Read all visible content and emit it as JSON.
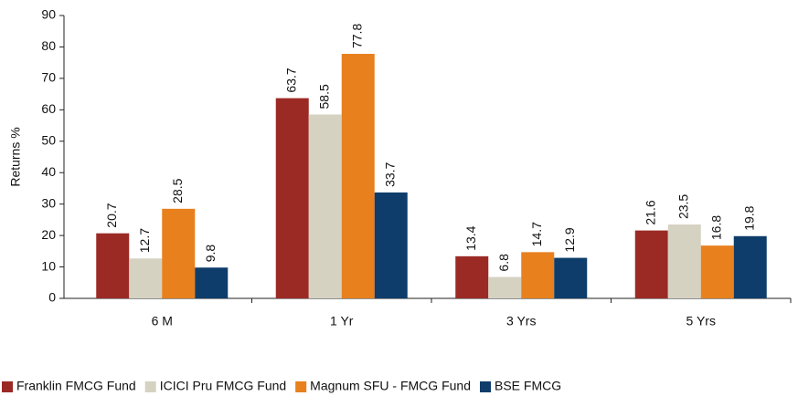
{
  "chart_data": {
    "type": "bar",
    "ylabel": "Returns %",
    "categories": [
      "6 M",
      "1 Yr",
      "3 Yrs",
      "5 Yrs"
    ],
    "series": [
      {
        "name": "Franklin FMCG Fund",
        "color": "#9b2a25",
        "values": [
          20.7,
          63.7,
          13.4,
          21.6
        ]
      },
      {
        "name": "ICICI Pru FMCG Fund",
        "color": "#d5d2c2",
        "values": [
          12.7,
          58.5,
          6.8,
          23.5
        ]
      },
      {
        "name": "Magnum SFU - FMCG Fund",
        "color": "#e8801e",
        "values": [
          28.5,
          77.8,
          14.7,
          16.8
        ]
      },
      {
        "name": "BSE FMCG",
        "color": "#0e3d6b",
        "values": [
          9.8,
          33.7,
          12.9,
          19.8
        ]
      }
    ],
    "ylim": [
      0,
      90
    ],
    "yticks": [
      0,
      10,
      20,
      30,
      40,
      50,
      60,
      70,
      80,
      90
    ],
    "legend": "bottom"
  }
}
